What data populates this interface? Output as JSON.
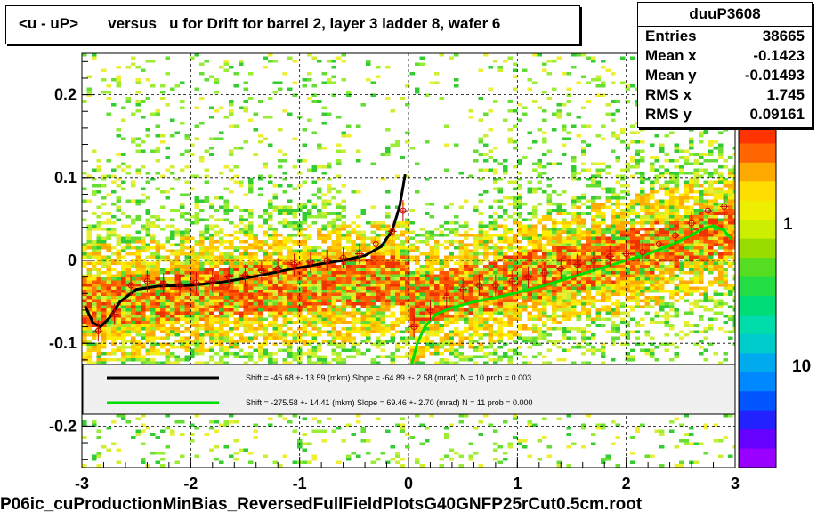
{
  "title": "<u - uP>       versus   u for Drift for barrel 2, layer 3 ladder 8, wafer 6",
  "stats": {
    "name": "duuP3608",
    "rows": [
      {
        "key": "Entries",
        "value": "38665"
      },
      {
        "key": "Mean x",
        "value": "-0.1423"
      },
      {
        "key": "Mean y",
        "value": "-0.01493"
      },
      {
        "key": "RMS x",
        "value": "1.745"
      },
      {
        "key": "RMS y",
        "value": "0.09161"
      }
    ]
  },
  "footer": "P06ic_cuProductionMinBias_ReversedFullFieldPlotsG40GNFP25rCut0.5cm.root",
  "colors": {
    "black_fit": "#000000",
    "green_fit": "#00dd00",
    "marker": "#cc0000",
    "heat_low": "#33cc33",
    "heat_mid": "#ffcc00",
    "heat_high": "#ff3300"
  },
  "chart_data": {
    "type": "heatmap",
    "title": "<u - uP>       versus   u for Drift for barrel 2, layer 3 ladder 8, wafer 6",
    "xlabel": "",
    "ylabel": "",
    "xlim": [
      -3,
      3
    ],
    "ylim": [
      -0.25,
      0.25
    ],
    "x_ticks": [
      "-3",
      "-2",
      "-1",
      "0",
      "1",
      "2",
      "3"
    ],
    "y_ticks": [
      "-0.2",
      "-0.1",
      "0",
      "0.1",
      "0.2"
    ],
    "grid": true,
    "color_scale": {
      "type": "log",
      "labels": [
        "1",
        "10"
      ]
    },
    "series": [
      {
        "name": "profile left",
        "x": [
          -2.85,
          -2.7,
          -2.55,
          -2.4,
          -2.25,
          -2.1,
          -1.95,
          -1.8,
          -1.65,
          -1.5,
          -1.35,
          -1.2,
          -1.05,
          -0.9,
          -0.75,
          -0.6,
          -0.45,
          -0.3,
          -0.15,
          -0.05
        ],
        "y": [
          -0.085,
          -0.065,
          -0.03,
          -0.025,
          -0.028,
          -0.03,
          -0.027,
          -0.025,
          -0.02,
          -0.018,
          -0.012,
          -0.01,
          -0.005,
          -0.002,
          0.0,
          0.003,
          0.008,
          0.02,
          0.035,
          0.06
        ]
      },
      {
        "name": "profile right",
        "x": [
          0.05,
          0.2,
          0.35,
          0.5,
          0.65,
          0.8,
          0.95,
          1.1,
          1.25,
          1.4,
          1.55,
          1.7,
          1.85,
          2.0,
          2.15,
          2.3,
          2.45,
          2.6,
          2.75,
          2.9
        ],
        "y": [
          -0.08,
          -0.06,
          -0.045,
          -0.035,
          -0.03,
          -0.03,
          -0.025,
          -0.02,
          -0.015,
          -0.01,
          -0.005,
          0.0,
          0.005,
          0.008,
          0.01,
          0.02,
          0.03,
          0.045,
          0.06,
          0.065
        ]
      },
      {
        "name": "fit black",
        "x": [
          -2.97,
          -2.9,
          -2.83,
          -2.75,
          -2.65,
          -2.5,
          -2.3,
          -2.0,
          -1.7,
          -1.4,
          -1.1,
          -0.8,
          -0.6,
          -0.4,
          -0.25,
          -0.15,
          -0.08,
          -0.03
        ],
        "y": [
          -0.055,
          -0.075,
          -0.08,
          -0.07,
          -0.05,
          -0.035,
          -0.031,
          -0.03,
          -0.026,
          -0.019,
          -0.011,
          -0.004,
          0.0,
          0.006,
          0.017,
          0.036,
          0.066,
          0.104
        ]
      },
      {
        "name": "fit green",
        "x": [
          0.03,
          0.08,
          0.15,
          0.25,
          0.4,
          0.6,
          0.8,
          1.0,
          1.2,
          1.4,
          1.6,
          1.8,
          2.0,
          2.2,
          2.4,
          2.55,
          2.7,
          2.8,
          2.9,
          2.97
        ],
        "y": [
          -0.125,
          -0.1,
          -0.08,
          -0.065,
          -0.057,
          -0.05,
          -0.045,
          -0.039,
          -0.032,
          -0.024,
          -0.016,
          -0.008,
          0.0,
          0.008,
          0.018,
          0.027,
          0.038,
          0.042,
          0.036,
          0.025
        ]
      }
    ],
    "legend": {
      "placement": "bottom",
      "entries": [
        {
          "text": "Shift =   -46.68 +- 13.59 (mkm) Slope =   -64.89 +- 2.58 (mrad)  N = 10 prob = 0.003",
          "color": "#000000"
        },
        {
          "text": "Shift =  -275.58 +- 14.41 (mkm) Slope =   69.46 +- 2.70 (mrad)  N = 11 prob = 0.000",
          "color": "#00dd00"
        }
      ]
    }
  }
}
